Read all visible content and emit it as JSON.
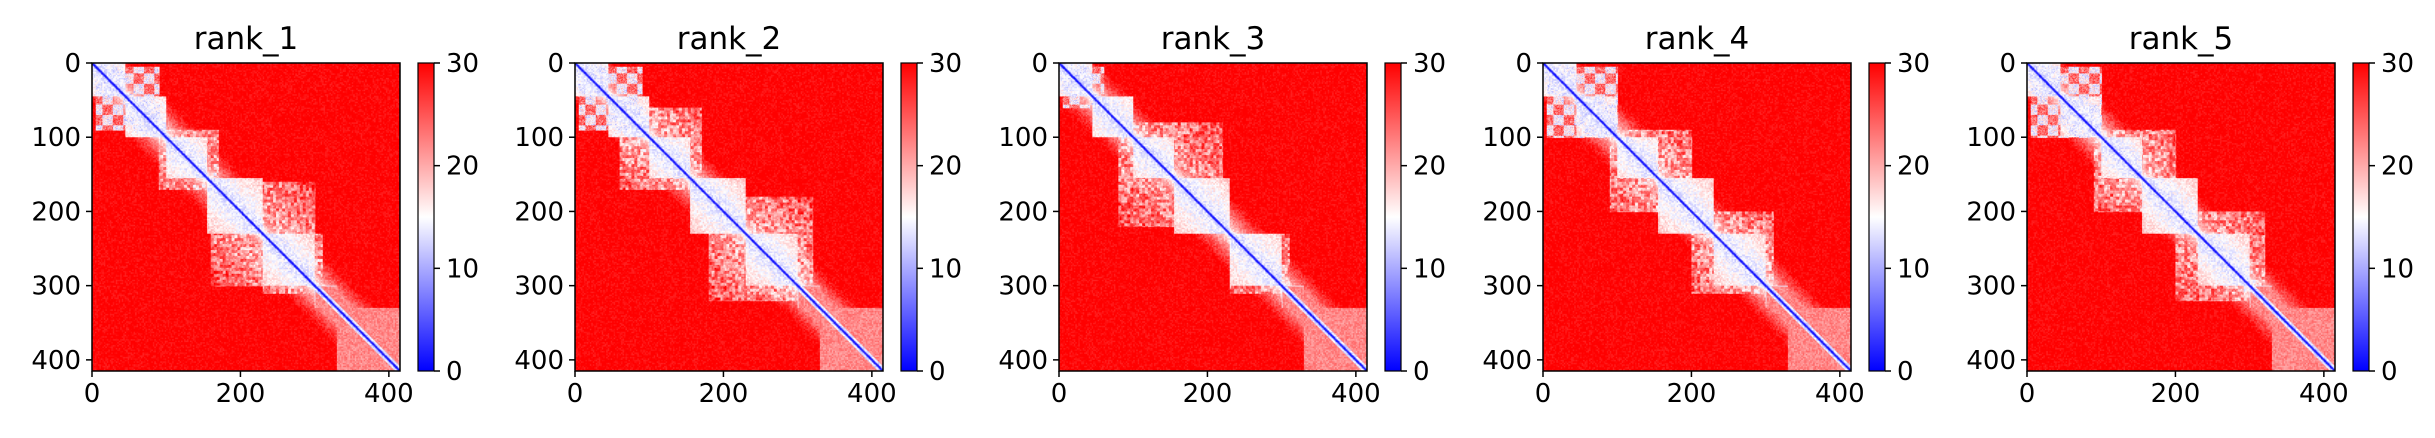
{
  "figure": {
    "background": "#ffffff"
  },
  "chart_data": [
    {
      "type": "heatmap",
      "title": "rank_1",
      "x_ticks": [
        0,
        200,
        400
      ],
      "y_ticks": [
        0,
        100,
        200,
        300,
        400
      ],
      "x_range": [
        0,
        415
      ],
      "y_range": [
        415,
        0
      ],
      "matrix_size": 415,
      "colorbar": {
        "range": [
          0,
          30
        ],
        "ticks": [
          0,
          10,
          20,
          30
        ],
        "colormap": "bwr",
        "colors": [
          "#0000ff",
          "#ffffff",
          "#ff0000"
        ]
      },
      "domain_blocks": [
        [
          0,
          45
        ],
        [
          45,
          100
        ],
        [
          100,
          155
        ],
        [
          155,
          230
        ],
        [
          230,
          300
        ],
        [
          300,
          330
        ],
        [
          330,
          415
        ]
      ],
      "contact_patterns": [
        {
          "kind": "checker",
          "range": [
            5,
            90
          ]
        },
        {
          "kind": "block",
          "range": [
            90,
            170
          ]
        },
        {
          "kind": "block",
          "range": [
            160,
            300
          ]
        },
        {
          "kind": "block",
          "range": [
            230,
            310
          ]
        }
      ]
    },
    {
      "type": "heatmap",
      "title": "rank_2",
      "x_ticks": [
        0,
        200,
        400
      ],
      "y_ticks": [
        0,
        100,
        200,
        300,
        400
      ],
      "x_range": [
        0,
        415
      ],
      "y_range": [
        415,
        0
      ],
      "matrix_size": 415,
      "colorbar": {
        "range": [
          0,
          30
        ],
        "ticks": [
          0,
          10,
          20,
          30
        ],
        "colormap": "bwr",
        "colors": [
          "#0000ff",
          "#ffffff",
          "#ff0000"
        ]
      },
      "domain_blocks": [
        [
          0,
          45
        ],
        [
          45,
          100
        ],
        [
          100,
          155
        ],
        [
          155,
          230
        ],
        [
          230,
          300
        ],
        [
          300,
          330
        ],
        [
          330,
          415
        ]
      ],
      "contact_patterns": [
        {
          "kind": "checker",
          "range": [
            5,
            90
          ]
        },
        {
          "kind": "block",
          "range": [
            60,
            170
          ]
        },
        {
          "kind": "block",
          "range": [
            180,
            320
          ]
        }
      ]
    },
    {
      "type": "heatmap",
      "title": "rank_3",
      "x_ticks": [
        0,
        200,
        400
      ],
      "y_ticks": [
        0,
        100,
        200,
        300,
        400
      ],
      "x_range": [
        0,
        415
      ],
      "y_range": [
        415,
        0
      ],
      "matrix_size": 415,
      "colorbar": {
        "range": [
          0,
          30
        ],
        "ticks": [
          0,
          10,
          20,
          30
        ],
        "colormap": "bwr",
        "colors": [
          "#0000ff",
          "#ffffff",
          "#ff0000"
        ]
      },
      "domain_blocks": [
        [
          0,
          45
        ],
        [
          45,
          100
        ],
        [
          100,
          155
        ],
        [
          155,
          230
        ],
        [
          230,
          300
        ],
        [
          300,
          330
        ],
        [
          330,
          415
        ]
      ],
      "contact_patterns": [
        {
          "kind": "checker",
          "range": [
            5,
            60
          ]
        },
        {
          "kind": "block",
          "range": [
            80,
            220
          ]
        },
        {
          "kind": "block",
          "range": [
            230,
            310
          ]
        }
      ]
    },
    {
      "type": "heatmap",
      "title": "rank_4",
      "x_ticks": [
        0,
        200,
        400
      ],
      "y_ticks": [
        0,
        100,
        200,
        300,
        400
      ],
      "x_range": [
        0,
        415
      ],
      "y_range": [
        415,
        0
      ],
      "matrix_size": 415,
      "colorbar": {
        "range": [
          0,
          30
        ],
        "ticks": [
          0,
          10,
          20,
          30
        ],
        "colormap": "bwr",
        "colors": [
          "#0000ff",
          "#ffffff",
          "#ff0000"
        ]
      },
      "domain_blocks": [
        [
          0,
          45
        ],
        [
          45,
          100
        ],
        [
          100,
          155
        ],
        [
          155,
          230
        ],
        [
          230,
          300
        ],
        [
          300,
          330
        ],
        [
          330,
          415
        ]
      ],
      "contact_patterns": [
        {
          "kind": "checker",
          "range": [
            5,
            100
          ]
        },
        {
          "kind": "block",
          "range": [
            90,
            200
          ]
        },
        {
          "kind": "block",
          "range": [
            200,
            310
          ]
        }
      ]
    },
    {
      "type": "heatmap",
      "title": "rank_5",
      "x_ticks": [
        0,
        200,
        400
      ],
      "y_ticks": [
        0,
        100,
        200,
        300,
        400
      ],
      "x_range": [
        0,
        415
      ],
      "y_range": [
        415,
        0
      ],
      "matrix_size": 415,
      "colorbar": {
        "range": [
          0,
          30
        ],
        "ticks": [
          0,
          10,
          20,
          30
        ],
        "colormap": "bwr",
        "colors": [
          "#0000ff",
          "#ffffff",
          "#ff0000"
        ]
      },
      "domain_blocks": [
        [
          0,
          45
        ],
        [
          45,
          100
        ],
        [
          100,
          155
        ],
        [
          155,
          230
        ],
        [
          230,
          300
        ],
        [
          300,
          330
        ],
        [
          330,
          415
        ]
      ],
      "contact_patterns": [
        {
          "kind": "checker",
          "range": [
            5,
            100
          ]
        },
        {
          "kind": "block",
          "range": [
            90,
            200
          ]
        },
        {
          "kind": "block",
          "range": [
            200,
            320
          ]
        }
      ]
    }
  ]
}
